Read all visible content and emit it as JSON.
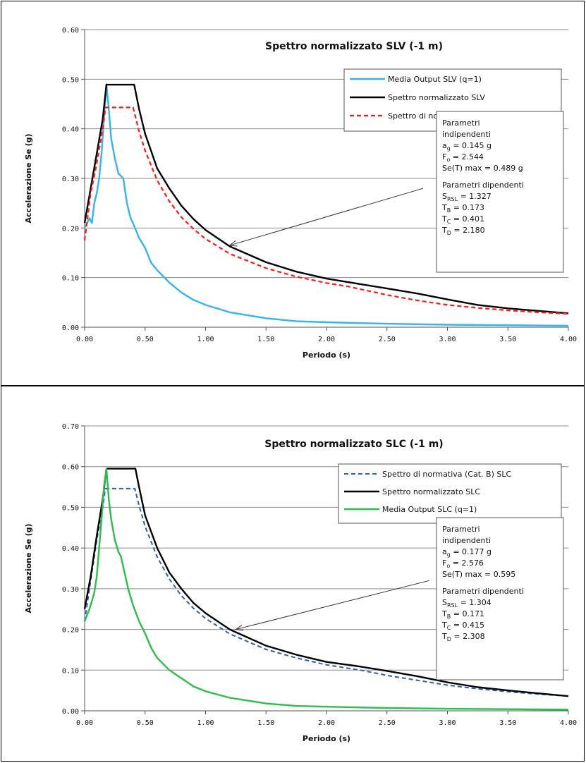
{
  "chart_data": [
    {
      "type": "line",
      "title": "Spettro normalizzato SLV (-1 m)",
      "xlabel": "Periodo (s)",
      "ylabel": "Accelerazione  Se (g)",
      "xlim": [
        0,
        4
      ],
      "ylim": [
        0,
        0.6
      ],
      "xticks": [
        "0.00",
        "0.50",
        "1.00",
        "1.50",
        "2.00",
        "2.50",
        "3.00",
        "3.50",
        "4.00"
      ],
      "yticks": [
        "0.00",
        "0.10",
        "0.20",
        "0.30",
        "0.40",
        "0.50",
        "0.60"
      ],
      "grid": "horizontal",
      "legend_position": "top-right",
      "series": [
        {
          "name": "Media Output  SLV (q=1)",
          "color": "#33b5f0",
          "dash": "solid",
          "width": 2.4,
          "points": [
            [
              0,
              0.2
            ],
            [
              0.04,
              0.22
            ],
            [
              0.06,
              0.21
            ],
            [
              0.08,
              0.25
            ],
            [
              0.1,
              0.27
            ],
            [
              0.12,
              0.3
            ],
            [
              0.14,
              0.35
            ],
            [
              0.16,
              0.42
            ],
            [
              0.18,
              0.49
            ],
            [
              0.2,
              0.44
            ],
            [
              0.22,
              0.38
            ],
            [
              0.25,
              0.34
            ],
            [
              0.28,
              0.31
            ],
            [
              0.32,
              0.3
            ],
            [
              0.35,
              0.25
            ],
            [
              0.38,
              0.22
            ],
            [
              0.4,
              0.21
            ],
            [
              0.45,
              0.18
            ],
            [
              0.5,
              0.16
            ],
            [
              0.55,
              0.13
            ],
            [
              0.6,
              0.115
            ],
            [
              0.7,
              0.09
            ],
            [
              0.8,
              0.07
            ],
            [
              0.9,
              0.055
            ],
            [
              1,
              0.045
            ],
            [
              1.2,
              0.03
            ],
            [
              1.5,
              0.018
            ],
            [
              1.75,
              0.012
            ],
            [
              2,
              0.01
            ],
            [
              2.5,
              0.007
            ],
            [
              3,
              0.005
            ],
            [
              3.5,
              0.004
            ],
            [
              4,
              0.003
            ]
          ]
        },
        {
          "name": "Spettro normalizzato SLV",
          "color": "#000000",
          "dash": "solid",
          "width": 2.4,
          "points": [
            [
              0,
              0.21
            ],
            [
              0.05,
              0.28
            ],
            [
              0.1,
              0.35
            ],
            [
              0.15,
              0.42
            ],
            [
              0.18,
              0.489
            ],
            [
              0.41,
              0.489
            ],
            [
              0.45,
              0.44
            ],
            [
              0.5,
              0.39
            ],
            [
              0.6,
              0.32
            ],
            [
              0.7,
              0.28
            ],
            [
              0.8,
              0.245
            ],
            [
              0.9,
              0.218
            ],
            [
              1,
              0.196
            ],
            [
              1.2,
              0.163
            ],
            [
              1.5,
              0.131
            ],
            [
              1.75,
              0.112
            ],
            [
              2,
              0.098
            ],
            [
              2.25,
              0.088
            ],
            [
              2.5,
              0.078
            ],
            [
              2.75,
              0.068
            ],
            [
              3,
              0.056
            ],
            [
              3.25,
              0.045
            ],
            [
              3.5,
              0.038
            ],
            [
              3.75,
              0.033
            ],
            [
              4,
              0.028
            ]
          ]
        },
        {
          "name": "Spettro di normativa (Cat. B) SLV",
          "color": "#ff1a1a",
          "dash": "6,4",
          "width": 2.2,
          "points": [
            [
              0,
              0.175
            ],
            [
              0.05,
              0.27
            ],
            [
              0.1,
              0.33
            ],
            [
              0.15,
              0.4
            ],
            [
              0.173,
              0.443
            ],
            [
              0.401,
              0.443
            ],
            [
              0.45,
              0.395
            ],
            [
              0.5,
              0.356
            ],
            [
              0.6,
              0.296
            ],
            [
              0.7,
              0.254
            ],
            [
              0.8,
              0.222
            ],
            [
              0.9,
              0.198
            ],
            [
              1,
              0.178
            ],
            [
              1.2,
              0.148
            ],
            [
              1.5,
              0.119
            ],
            [
              1.75,
              0.102
            ],
            [
              2,
              0.089
            ],
            [
              2.18,
              0.082
            ],
            [
              2.5,
              0.065
            ],
            [
              2.75,
              0.054
            ],
            [
              3,
              0.045
            ],
            [
              3.25,
              0.039
            ],
            [
              3.5,
              0.034
            ],
            [
              3.75,
              0.03
            ],
            [
              4,
              0.027
            ]
          ]
        }
      ],
      "box": {
        "lines": [
          "Parametri",
          "indipendenti",
          "ag = 0.145 g",
          "Fo = 2.544",
          "Se(T) max = 0.489 g",
          "",
          "Parametri dipendenti",
          "SRSL = 1.327",
          "TB = 0.173",
          "TC = 0.401",
          "TD = 2.180"
        ]
      },
      "arrow": {
        "from": [
          2.8,
          0.28
        ],
        "to": [
          1.2,
          0.165
        ]
      }
    },
    {
      "type": "line",
      "title": "Spettro normalizzato SLC (-1 m)",
      "xlabel": "Periodo (s)",
      "ylabel": "Accelerazione  Se (g)",
      "xlim": [
        0,
        4
      ],
      "ylim": [
        0,
        0.7
      ],
      "xticks": [
        "0.00",
        "0.50",
        "1.00",
        "1.50",
        "2.00",
        "2.50",
        "3.00",
        "3.50",
        "4.00"
      ],
      "yticks": [
        "0.00",
        "0.10",
        "0.20",
        "0.30",
        "0.40",
        "0.50",
        "0.60",
        "0.70"
      ],
      "grid": "horizontal",
      "legend_position": "top-right",
      "series": [
        {
          "name": "Spettro di normativa (Cat. B) SLC",
          "color": "#2f5faf",
          "dash": "6,4",
          "width": 2.0,
          "points": [
            [
              0,
              0.22
            ],
            [
              0.05,
              0.32
            ],
            [
              0.1,
              0.42
            ],
            [
              0.15,
              0.5
            ],
            [
              0.171,
              0.546
            ],
            [
              0.415,
              0.546
            ],
            [
              0.45,
              0.504
            ],
            [
              0.5,
              0.453
            ],
            [
              0.6,
              0.378
            ],
            [
              0.7,
              0.324
            ],
            [
              0.8,
              0.283
            ],
            [
              0.9,
              0.252
            ],
            [
              1,
              0.227
            ],
            [
              1.2,
              0.189
            ],
            [
              1.5,
              0.151
            ],
            [
              1.75,
              0.13
            ],
            [
              2,
              0.113
            ],
            [
              2.3,
              0.099
            ],
            [
              2.5,
              0.087
            ],
            [
              2.75,
              0.075
            ],
            [
              3,
              0.063
            ],
            [
              3.25,
              0.054
            ],
            [
              3.5,
              0.047
            ],
            [
              3.75,
              0.041
            ],
            [
              4,
              0.036
            ]
          ]
        },
        {
          "name": "Spettro normalizzato SLC",
          "color": "#000000",
          "dash": "solid",
          "width": 2.4,
          "points": [
            [
              0,
              0.25
            ],
            [
              0.05,
              0.33
            ],
            [
              0.1,
              0.43
            ],
            [
              0.15,
              0.52
            ],
            [
              0.18,
              0.595
            ],
            [
              0.42,
              0.595
            ],
            [
              0.45,
              0.55
            ],
            [
              0.5,
              0.48
            ],
            [
              0.6,
              0.4
            ],
            [
              0.7,
              0.34
            ],
            [
              0.8,
              0.3
            ],
            [
              0.9,
              0.265
            ],
            [
              1,
              0.24
            ],
            [
              1.2,
              0.2
            ],
            [
              1.5,
              0.16
            ],
            [
              1.75,
              0.138
            ],
            [
              2,
              0.12
            ],
            [
              2.25,
              0.11
            ],
            [
              2.5,
              0.098
            ],
            [
              2.75,
              0.085
            ],
            [
              3,
              0.07
            ],
            [
              3.25,
              0.058
            ],
            [
              3.5,
              0.05
            ],
            [
              3.75,
              0.043
            ],
            [
              4,
              0.036
            ]
          ]
        },
        {
          "name": "Media Output  SLC (q=1)",
          "color": "#2dbd4e",
          "dash": "solid",
          "width": 2.4,
          "points": [
            [
              0,
              0.22
            ],
            [
              0.04,
              0.25
            ],
            [
              0.06,
              0.27
            ],
            [
              0.08,
              0.29
            ],
            [
              0.1,
              0.33
            ],
            [
              0.12,
              0.4
            ],
            [
              0.14,
              0.47
            ],
            [
              0.16,
              0.55
            ],
            [
              0.18,
              0.595
            ],
            [
              0.2,
              0.52
            ],
            [
              0.22,
              0.47
            ],
            [
              0.25,
              0.42
            ],
            [
              0.28,
              0.39
            ],
            [
              0.3,
              0.38
            ],
            [
              0.33,
              0.34
            ],
            [
              0.36,
              0.3
            ],
            [
              0.4,
              0.26
            ],
            [
              0.45,
              0.22
            ],
            [
              0.5,
              0.19
            ],
            [
              0.55,
              0.155
            ],
            [
              0.6,
              0.13
            ],
            [
              0.7,
              0.1
            ],
            [
              0.8,
              0.08
            ],
            [
              0.9,
              0.06
            ],
            [
              1,
              0.048
            ],
            [
              1.2,
              0.032
            ],
            [
              1.5,
              0.018
            ],
            [
              1.75,
              0.012
            ],
            [
              2,
              0.01
            ],
            [
              2.5,
              0.007
            ],
            [
              3,
              0.005
            ],
            [
              3.5,
              0.004
            ],
            [
              4,
              0.003
            ]
          ]
        }
      ],
      "box": {
        "lines": [
          "Parametri",
          "indipendenti",
          "ag = 0.177 g",
          "Fo = 2.576",
          "Se(T) max = 0.595",
          "",
          "Parametri dipendenti",
          "SRSL = 1.304",
          "TB = 0.171",
          "TC = 0.415",
          "TD = 2.308"
        ]
      },
      "arrow": {
        "from": [
          2.85,
          0.32
        ],
        "to": [
          1.25,
          0.2
        ]
      }
    }
  ]
}
